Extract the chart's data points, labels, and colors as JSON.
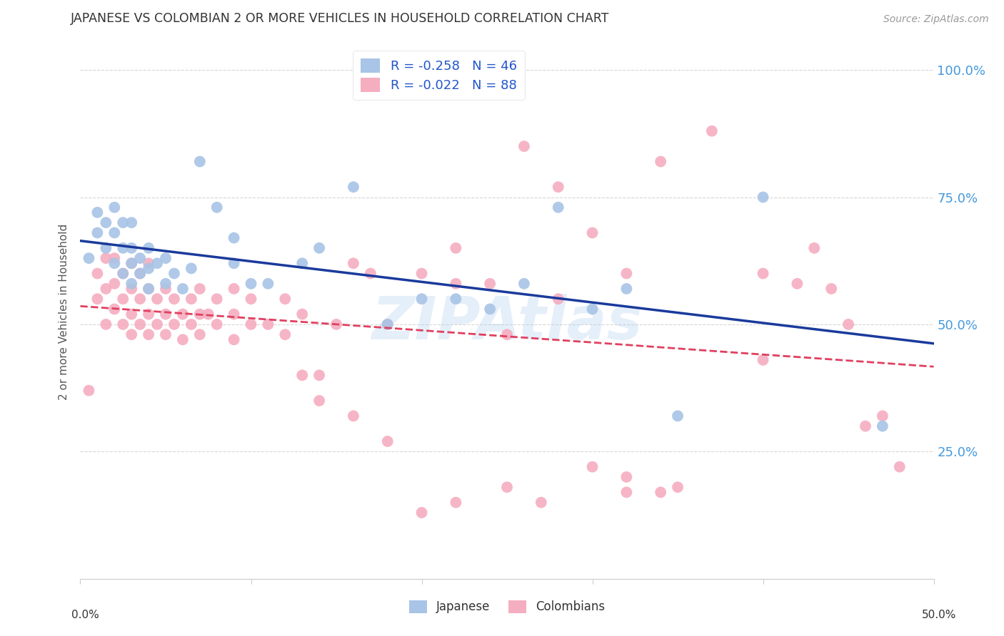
{
  "title": "JAPANESE VS COLOMBIAN 2 OR MORE VEHICLES IN HOUSEHOLD CORRELATION CHART",
  "source": "Source: ZipAtlas.com",
  "ylabel": "2 or more Vehicles in Household",
  "ytick_vals": [
    0.0,
    0.25,
    0.5,
    0.75,
    1.0
  ],
  "ytick_labels_right": [
    "",
    "25.0%",
    "50.0%",
    "75.0%",
    "100.0%"
  ],
  "xlim": [
    0.0,
    0.5
  ],
  "ylim": [
    0.0,
    1.05
  ],
  "legend_r_japanese": "R = -0.258",
  "legend_n_japanese": "N = 46",
  "legend_r_colombian": "R = -0.022",
  "legend_n_colombian": "N = 88",
  "japanese_color": "#a8c4e6",
  "colombian_color": "#f5adc0",
  "japanese_line_color": "#1a3a9c",
  "colombian_line_color": "#e04060",
  "background_color": "#ffffff",
  "watermark": "ZIPAtlas",
  "japanese_x": [
    0.005,
    0.01,
    0.01,
    0.015,
    0.015,
    0.02,
    0.02,
    0.02,
    0.025,
    0.025,
    0.025,
    0.03,
    0.03,
    0.03,
    0.03,
    0.035,
    0.035,
    0.04,
    0.04,
    0.04,
    0.045,
    0.05,
    0.05,
    0.055,
    0.06,
    0.065,
    0.07,
    0.08,
    0.09,
    0.09,
    0.1,
    0.11,
    0.13,
    0.14,
    0.16,
    0.18,
    0.2,
    0.22,
    0.24,
    0.26,
    0.28,
    0.3,
    0.32,
    0.35,
    0.4,
    0.47
  ],
  "japanese_y": [
    0.63,
    0.68,
    0.72,
    0.65,
    0.7,
    0.62,
    0.68,
    0.73,
    0.6,
    0.65,
    0.7,
    0.58,
    0.62,
    0.65,
    0.7,
    0.6,
    0.63,
    0.57,
    0.61,
    0.65,
    0.62,
    0.58,
    0.63,
    0.6,
    0.57,
    0.61,
    0.82,
    0.73,
    0.62,
    0.67,
    0.58,
    0.58,
    0.62,
    0.65,
    0.77,
    0.5,
    0.55,
    0.55,
    0.53,
    0.58,
    0.73,
    0.53,
    0.57,
    0.32,
    0.75,
    0.3
  ],
  "colombian_x": [
    0.005,
    0.01,
    0.01,
    0.015,
    0.015,
    0.015,
    0.02,
    0.02,
    0.02,
    0.025,
    0.025,
    0.025,
    0.03,
    0.03,
    0.03,
    0.03,
    0.035,
    0.035,
    0.035,
    0.04,
    0.04,
    0.04,
    0.04,
    0.045,
    0.045,
    0.05,
    0.05,
    0.05,
    0.055,
    0.055,
    0.06,
    0.06,
    0.065,
    0.065,
    0.07,
    0.07,
    0.07,
    0.075,
    0.08,
    0.08,
    0.09,
    0.09,
    0.09,
    0.1,
    0.1,
    0.11,
    0.12,
    0.12,
    0.13,
    0.13,
    0.14,
    0.15,
    0.16,
    0.17,
    0.18,
    0.2,
    0.22,
    0.22,
    0.24,
    0.25,
    0.26,
    0.28,
    0.3,
    0.32,
    0.34,
    0.37,
    0.4,
    0.4,
    0.42,
    0.43,
    0.44,
    0.45,
    0.46,
    0.47,
    0.48,
    0.3,
    0.32,
    0.34,
    0.2,
    0.22,
    0.28,
    0.14,
    0.16,
    0.18,
    0.25,
    0.27,
    0.32,
    0.35
  ],
  "colombian_y": [
    0.37,
    0.55,
    0.6,
    0.5,
    0.57,
    0.63,
    0.53,
    0.58,
    0.63,
    0.5,
    0.55,
    0.6,
    0.48,
    0.52,
    0.57,
    0.62,
    0.5,
    0.55,
    0.6,
    0.48,
    0.52,
    0.57,
    0.62,
    0.5,
    0.55,
    0.48,
    0.52,
    0.57,
    0.5,
    0.55,
    0.47,
    0.52,
    0.5,
    0.55,
    0.48,
    0.52,
    0.57,
    0.52,
    0.5,
    0.55,
    0.47,
    0.52,
    0.57,
    0.5,
    0.55,
    0.5,
    0.48,
    0.55,
    0.4,
    0.52,
    0.4,
    0.5,
    0.62,
    0.6,
    0.5,
    0.6,
    0.58,
    0.65,
    0.58,
    0.48,
    0.85,
    0.77,
    0.68,
    0.6,
    0.82,
    0.88,
    0.6,
    0.43,
    0.58,
    0.65,
    0.57,
    0.5,
    0.3,
    0.32,
    0.22,
    0.22,
    0.17,
    0.17,
    0.13,
    0.15,
    0.55,
    0.35,
    0.32,
    0.27,
    0.18,
    0.15,
    0.2,
    0.18
  ]
}
